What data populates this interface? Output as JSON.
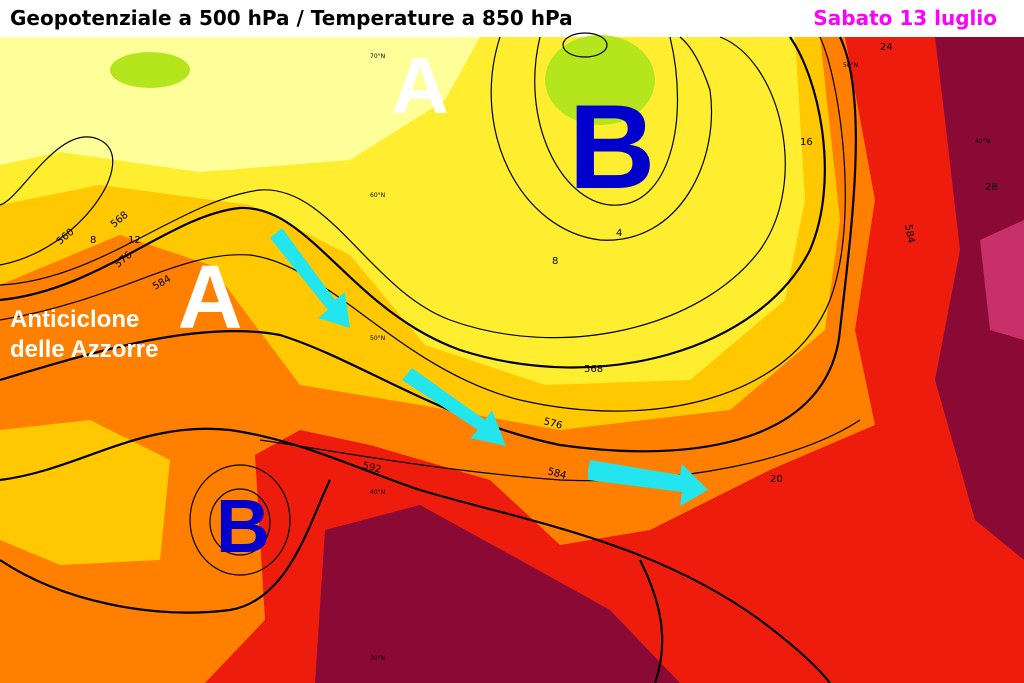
{
  "header": {
    "title": "Geopotenziale a 500 hPa / Temperature a 850 hPa",
    "date": "Sabato 13 luglio"
  },
  "map": {
    "pressure_centers": [
      "A",
      "B",
      "A",
      "B"
    ],
    "region_label": [
      "Anticiclone",
      "delle Azzorre"
    ],
    "contour_labels": [
      "560",
      "568",
      "576",
      "584",
      "592",
      "568",
      "576",
      "584",
      "584"
    ],
    "temperature_labels": [
      "8",
      "12",
      "16",
      "4",
      "8",
      "20",
      "24",
      "28"
    ],
    "latitude_labels": [
      "70°N",
      "60°N",
      "50°N",
      "40°N",
      "30°N",
      "50°N",
      "40°N"
    ]
  }
}
